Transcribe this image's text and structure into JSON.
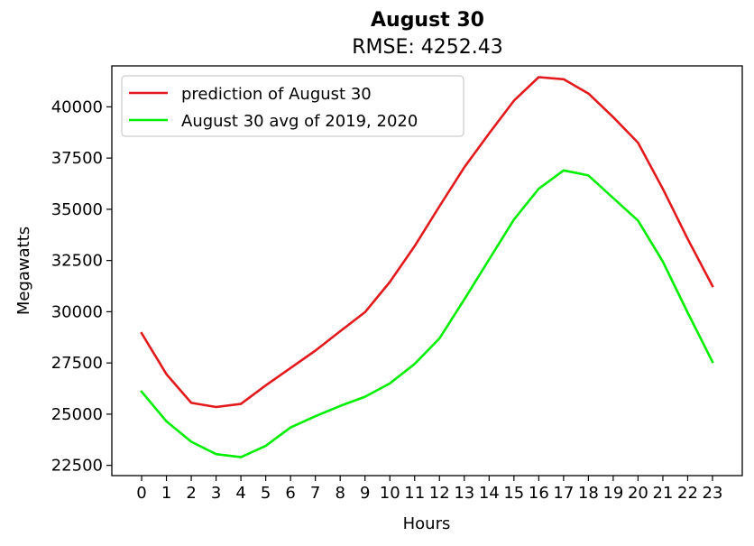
{
  "chart_data": {
    "type": "line",
    "title": "August 30",
    "subtitle": "RMSE: 4252.43",
    "xlabel": "Hours",
    "ylabel": "Megawatts",
    "x": [
      0,
      1,
      2,
      3,
      4,
      5,
      6,
      7,
      8,
      9,
      10,
      11,
      12,
      13,
      14,
      15,
      16,
      17,
      18,
      19,
      20,
      21,
      22,
      23
    ],
    "xtick_labels": [
      "0",
      "1",
      "2",
      "3",
      "4",
      "5",
      "6",
      "7",
      "8",
      "9",
      "10",
      "11",
      "12",
      "13",
      "14",
      "15",
      "16",
      "17",
      "18",
      "19",
      "20",
      "21",
      "22",
      "23"
    ],
    "ylim": [
      22000,
      42000
    ],
    "yticks": [
      22500,
      25000,
      27500,
      30000,
      32500,
      35000,
      37500,
      40000
    ],
    "ytick_labels": [
      "22500",
      "25000",
      "27500",
      "30000",
      "32500",
      "35000",
      "37500",
      "40000"
    ],
    "xlim": [
      -1.2,
      24.2
    ],
    "grid": false,
    "legend_position": "top-left",
    "series": [
      {
        "name": "prediction of August 30",
        "color": "#e31a1c",
        "values": [
          28950,
          26950,
          25550,
          25350,
          25500,
          26400,
          27250,
          28100,
          29050,
          29980,
          31450,
          33200,
          35150,
          37050,
          38700,
          40300,
          41450,
          41350,
          40650,
          39500,
          38250,
          36000,
          33550,
          31250
        ]
      },
      {
        "name": "August 30 avg of 2019, 2020",
        "color": "#00ee00",
        "values": [
          26100,
          24650,
          23650,
          23050,
          22900,
          23450,
          24350,
          24900,
          25400,
          25850,
          26500,
          27450,
          28700,
          30600,
          32550,
          34500,
          36000,
          36900,
          36650,
          35550,
          34450,
          32450,
          29950,
          27550
        ]
      }
    ]
  }
}
